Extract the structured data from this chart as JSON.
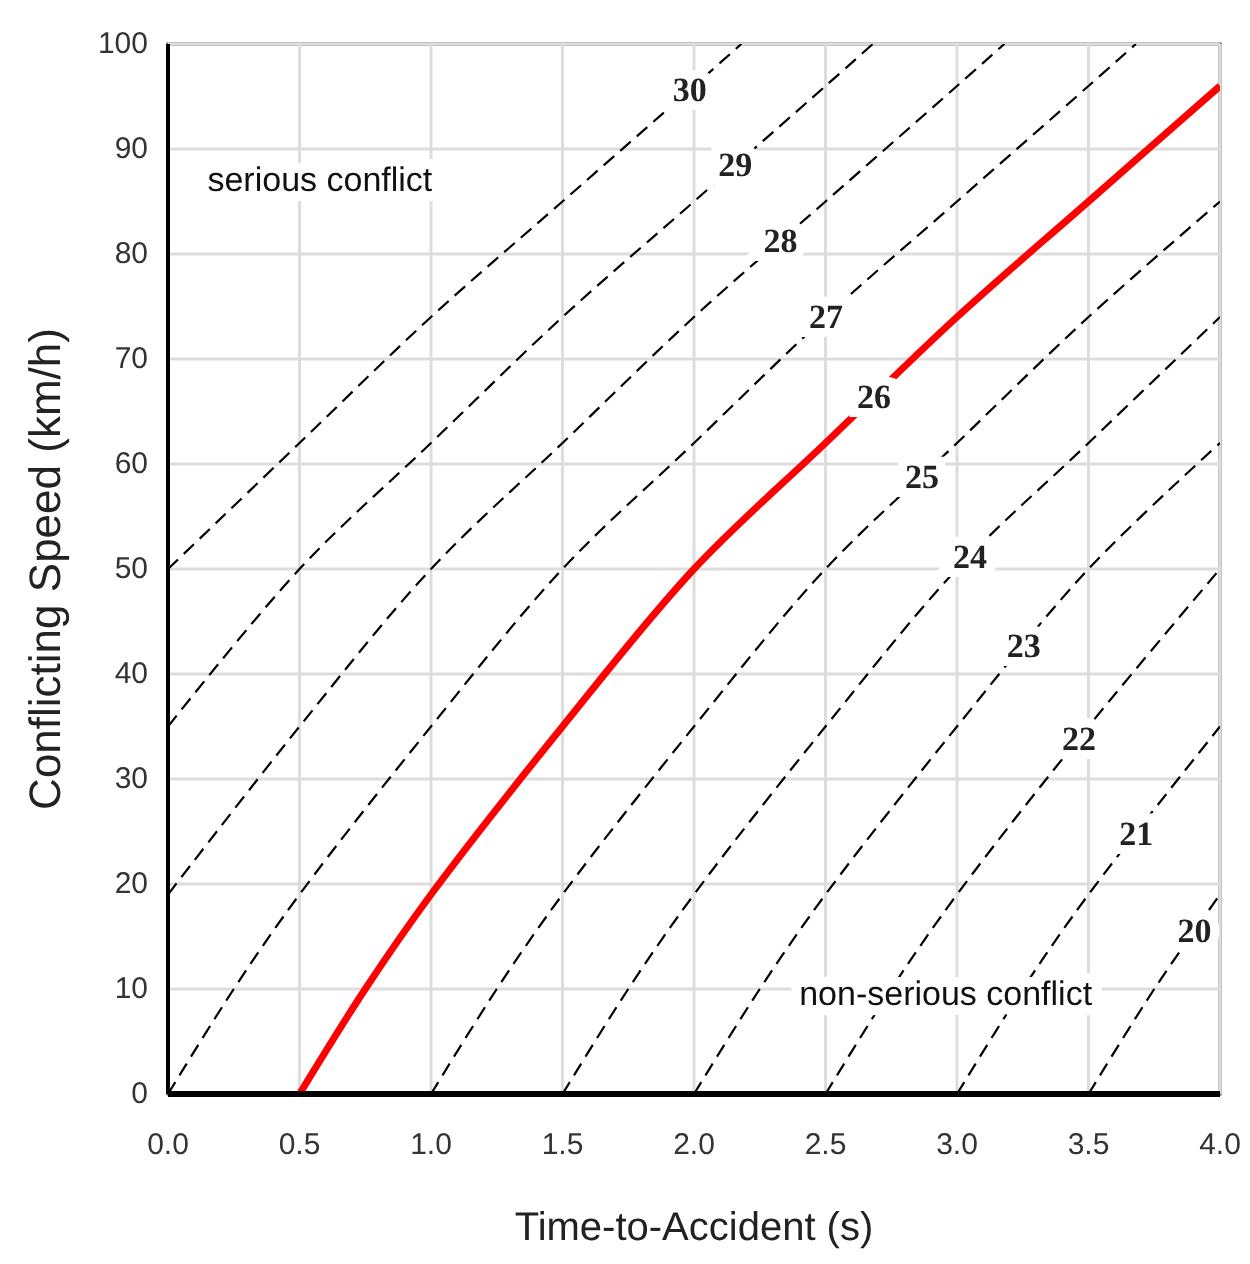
{
  "chart_data": {
    "type": "line",
    "xlabel": "Time-to-Accident (s)",
    "ylabel": "Conflicting Speed (km/h)",
    "xlim": [
      0,
      4
    ],
    "xticks": [
      {
        "value": 0,
        "label": "0.0"
      },
      {
        "value": 0.5,
        "label": "0.5"
      },
      {
        "value": 1,
        "label": "1.0"
      },
      {
        "value": 1.5,
        "label": "1.5"
      },
      {
        "value": 2,
        "label": "2.0"
      },
      {
        "value": 2.5,
        "label": "2.5"
      },
      {
        "value": 3,
        "label": "3.0"
      },
      {
        "value": 3.5,
        "label": "3.5"
      },
      {
        "value": 4,
        "label": "4.0"
      }
    ],
    "ylim": [
      0,
      100
    ],
    "yticks": [
      0,
      10,
      20,
      30,
      40,
      50,
      60,
      70,
      80,
      90,
      100
    ],
    "grid": true,
    "marker": "none",
    "annotations": [
      "serious conflict",
      "non-serious conflict"
    ],
    "series": [
      {
        "name": "30",
        "color": "#000000",
        "line_style": "dashed",
        "x": [
          0,
          0.5,
          1,
          1.5,
          2,
          2.18
        ],
        "values": [
          50,
          62,
          74,
          85,
          96,
          100
        ]
      },
      {
        "name": "29",
        "color": "#000000",
        "line_style": "dashed",
        "x": [
          0,
          0.5,
          1,
          1.5,
          2,
          2.5,
          2.68
        ],
        "values": [
          35,
          50,
          62,
          74,
          85,
          96,
          100
        ]
      },
      {
        "name": "28",
        "color": "#000000",
        "line_style": "dashed",
        "x": [
          0,
          0.5,
          1,
          1.5,
          2,
          2.5,
          3,
          3.18
        ],
        "values": [
          19,
          35,
          50,
          62,
          74,
          85,
          96,
          100
        ]
      },
      {
        "name": "27",
        "color": "#000000",
        "line_style": "dashed",
        "x": [
          0,
          0.25,
          0.5,
          1,
          1.5,
          2,
          2.5,
          3,
          3.5,
          3.68
        ],
        "values": [
          0,
          10,
          19,
          35,
          50,
          62,
          74,
          85,
          96,
          100
        ]
      },
      {
        "name": "26",
        "color": "#ff0000",
        "line_style": "solid",
        "x": [
          0.5,
          0.75,
          1,
          1.5,
          2,
          2.5,
          3,
          3.5,
          4
        ],
        "values": [
          0,
          10,
          19,
          35,
          50,
          62,
          74,
          85,
          96
        ]
      },
      {
        "name": "25",
        "color": "#000000",
        "line_style": "dashed",
        "x": [
          1,
          1.25,
          1.5,
          2,
          2.5,
          3,
          3.5,
          4
        ],
        "values": [
          0,
          10,
          19,
          35,
          50,
          62,
          74,
          85
        ]
      },
      {
        "name": "24",
        "color": "#000000",
        "line_style": "dashed",
        "x": [
          1.5,
          1.75,
          2,
          2.5,
          3,
          3.5,
          4
        ],
        "values": [
          0,
          10,
          19,
          35,
          50,
          62,
          74
        ]
      },
      {
        "name": "23",
        "color": "#000000",
        "line_style": "dashed",
        "x": [
          2,
          2.25,
          2.5,
          3,
          3.5,
          4
        ],
        "values": [
          0,
          10,
          19,
          35,
          50,
          62
        ]
      },
      {
        "name": "22",
        "color": "#000000",
        "line_style": "dashed",
        "x": [
          2.5,
          2.75,
          3,
          3.5,
          4
        ],
        "values": [
          0,
          10,
          19,
          35,
          50
        ]
      },
      {
        "name": "21",
        "color": "#000000",
        "line_style": "dashed",
        "x": [
          3,
          3.25,
          3.5,
          4
        ],
        "values": [
          0,
          10,
          19,
          35
        ]
      },
      {
        "name": "20",
        "color": "#000000",
        "line_style": "dashed",
        "x": [
          3.5,
          3.75,
          4
        ],
        "values": [
          0,
          10,
          19
        ]
      }
    ]
  }
}
